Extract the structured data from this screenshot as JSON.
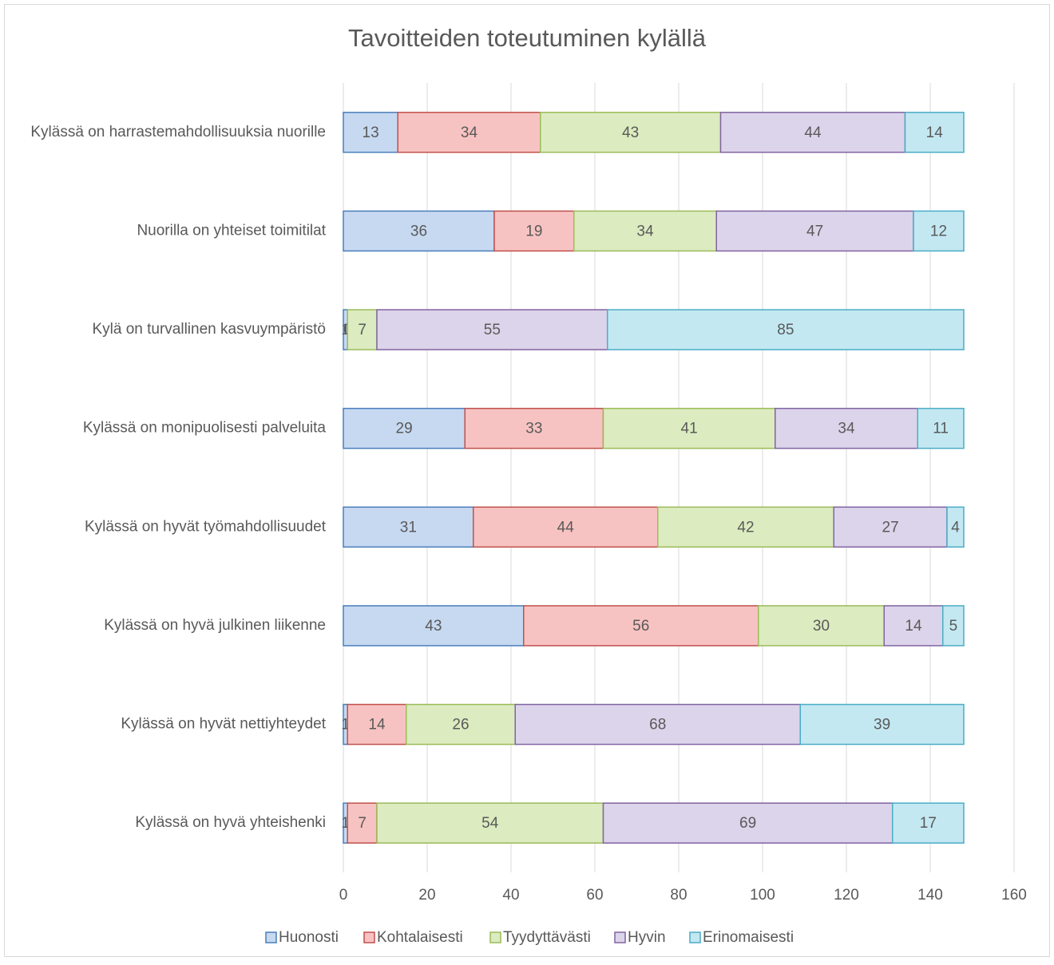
{
  "chart_data": {
    "type": "stacked-barh",
    "title": "Tavoitteiden toteutuminen kylällä",
    "categories": [
      "Kylässä on harrastemahdollisuuksia nuorille",
      "Nuorilla on yhteiset toimitilat",
      "Kylä on turvallinen kasvuympäristö",
      "Kylässä on monipuolisesti palveluita",
      "Kylässä on hyvät työmahdollisuudet",
      "Kylässä on hyvä julkinen liikenne",
      "Kylässä on hyvät nettiyhteydet",
      "Kylässä on hyvä yhteishenki"
    ],
    "series": [
      {
        "name": "Huonosti",
        "color": "#c6d9f1",
        "border": "#4a7ebb",
        "values": [
          13,
          36,
          1,
          29,
          31,
          43,
          1,
          1
        ]
      },
      {
        "name": "Kohtalaisesti",
        "color": "#f7c3c2",
        "border": "#c0504d",
        "values": [
          34,
          19,
          0,
          33,
          44,
          56,
          14,
          7
        ]
      },
      {
        "name": "Tyydyttävästi",
        "color": "#dcebc0",
        "border": "#9bbb59",
        "values": [
          43,
          34,
          7,
          41,
          42,
          30,
          26,
          54
        ]
      },
      {
        "name": "Hyvin",
        "color": "#dcd4ea",
        "border": "#8064a2",
        "values": [
          44,
          47,
          55,
          34,
          27,
          14,
          68,
          69
        ]
      },
      {
        "name": "Erinomaisesti",
        "color": "#c3e8f2",
        "border": "#4bacc6",
        "values": [
          14,
          12,
          85,
          11,
          4,
          5,
          39,
          17
        ]
      }
    ],
    "xlim": [
      0,
      160
    ],
    "xticks": [
      0,
      20,
      40,
      60,
      80,
      100,
      120,
      140,
      160
    ],
    "grid": true,
    "legend": "bottom"
  }
}
